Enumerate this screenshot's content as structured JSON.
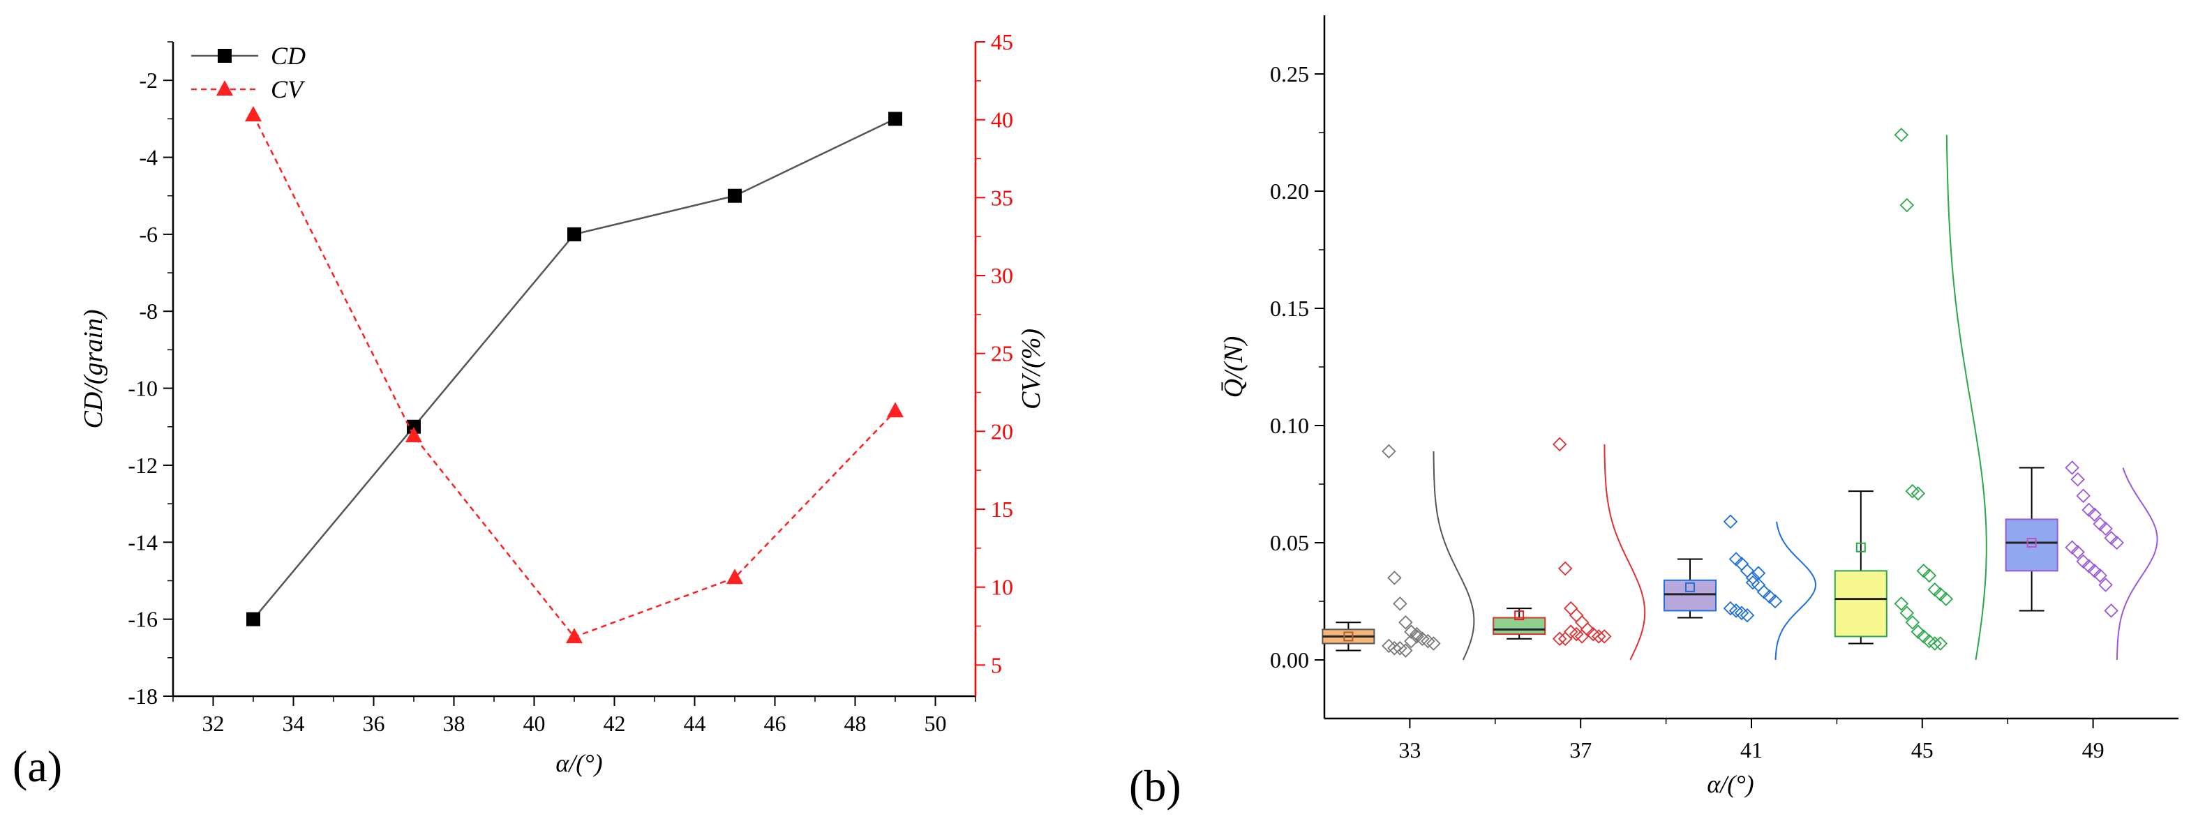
{
  "chart_data": [
    {
      "type": "line",
      "panel_label": "(a)",
      "x": [
        33,
        37,
        41,
        45,
        49
      ],
      "xlim": [
        31,
        51
      ],
      "x_ticks": [
        "32",
        "34",
        "36",
        "38",
        "40",
        "42",
        "44",
        "46",
        "48",
        "50"
      ],
      "xlabel": "α/(°)",
      "left_axis": {
        "label": "CD/(grain)",
        "ylim": [
          -18,
          -1
        ],
        "ticks": [
          "-2",
          "-4",
          "-6",
          "-8",
          "-10",
          "-12",
          "-14",
          "-16",
          "-18"
        ],
        "color": "#000000"
      },
      "right_axis": {
        "label": "CV/(%)",
        "ylim": [
          3,
          45
        ],
        "ticks": [
          "5",
          "10",
          "15",
          "20",
          "25",
          "30",
          "35",
          "40",
          "45"
        ],
        "color": "#ff0000"
      },
      "series": [
        {
          "name": "CD",
          "axis": "left",
          "values": [
            -16,
            -11,
            -6,
            -5,
            -3
          ],
          "color": "#000000",
          "line": "solid",
          "marker": "square"
        },
        {
          "name": "CV",
          "axis": "right",
          "values": [
            40.3,
            19.7,
            6.8,
            10.6,
            21.3
          ],
          "color": "#ff2020",
          "line": "dashed",
          "marker": "triangle"
        }
      ],
      "legend": {
        "position": "top-left",
        "entries": [
          "CD",
          "CV"
        ]
      }
    },
    {
      "type": "box",
      "panel_label": "(b)",
      "categories": [
        "33",
        "37",
        "41",
        "45",
        "49"
      ],
      "xlabel": "α/(°)",
      "ylabel": "Q̄/(N)",
      "ylim": [
        -0.025,
        0.275
      ],
      "y_ticks": [
        "0.00",
        "0.05",
        "0.10",
        "0.15",
        "0.20",
        "0.25"
      ],
      "groups": [
        {
          "name": "33",
          "color": "#f5b87a",
          "edge": "#555555",
          "min": 0.004,
          "q1": 0.007,
          "median": 0.01,
          "q3": 0.013,
          "max": 0.016,
          "mean": 0.01,
          "mean_color": "#b06030",
          "points": [
            0.089,
            0.035,
            0.024,
            0.016,
            0.012,
            0.01,
            0.009,
            0.008,
            0.007,
            0.006,
            0.005,
            0.005,
            0.004,
            0.008,
            0.011
          ]
        },
        {
          "name": "37",
          "color": "#8ed08e",
          "edge": "#e03030",
          "min": 0.009,
          "q1": 0.011,
          "median": 0.013,
          "q3": 0.018,
          "max": 0.022,
          "mean": 0.019,
          "mean_color": "#e02020",
          "points": [
            0.092,
            0.039,
            0.022,
            0.019,
            0.016,
            0.013,
            0.011,
            0.01,
            0.01,
            0.009,
            0.009,
            0.012,
            0.011,
            0.01
          ]
        },
        {
          "name": "41",
          "color": "#b8a8dc",
          "edge": "#1e6fd9",
          "min": 0.018,
          "q1": 0.021,
          "median": 0.028,
          "q3": 0.034,
          "max": 0.043,
          "mean": 0.031,
          "mean_color": "#1e6fd9",
          "points": [
            0.059,
            0.043,
            0.041,
            0.038,
            0.035,
            0.032,
            0.029,
            0.027,
            0.025,
            0.022,
            0.021,
            0.02,
            0.019,
            0.033,
            0.037
          ]
        },
        {
          "name": "45",
          "color": "#f8f890",
          "edge": "#2aa84a",
          "min": 0.007,
          "q1": 0.01,
          "median": 0.026,
          "q3": 0.038,
          "max": 0.072,
          "mean": 0.048,
          "mean_color": "#2aa84a",
          "points": [
            0.224,
            0.194,
            0.072,
            0.071,
            0.038,
            0.036,
            0.03,
            0.028,
            0.026,
            0.024,
            0.02,
            0.016,
            0.012,
            0.01,
            0.008,
            0.007,
            0.007
          ]
        },
        {
          "name": "49",
          "color": "#8fa8f0",
          "edge": "#9a5ad8",
          "min": 0.021,
          "q1": 0.038,
          "median": 0.05,
          "q3": 0.06,
          "max": 0.082,
          "mean": 0.05,
          "mean_color": "#c050c0",
          "points": [
            0.082,
            0.077,
            0.07,
            0.064,
            0.062,
            0.058,
            0.056,
            0.052,
            0.05,
            0.048,
            0.046,
            0.042,
            0.04,
            0.038,
            0.036,
            0.032,
            0.021
          ]
        }
      ]
    }
  ]
}
